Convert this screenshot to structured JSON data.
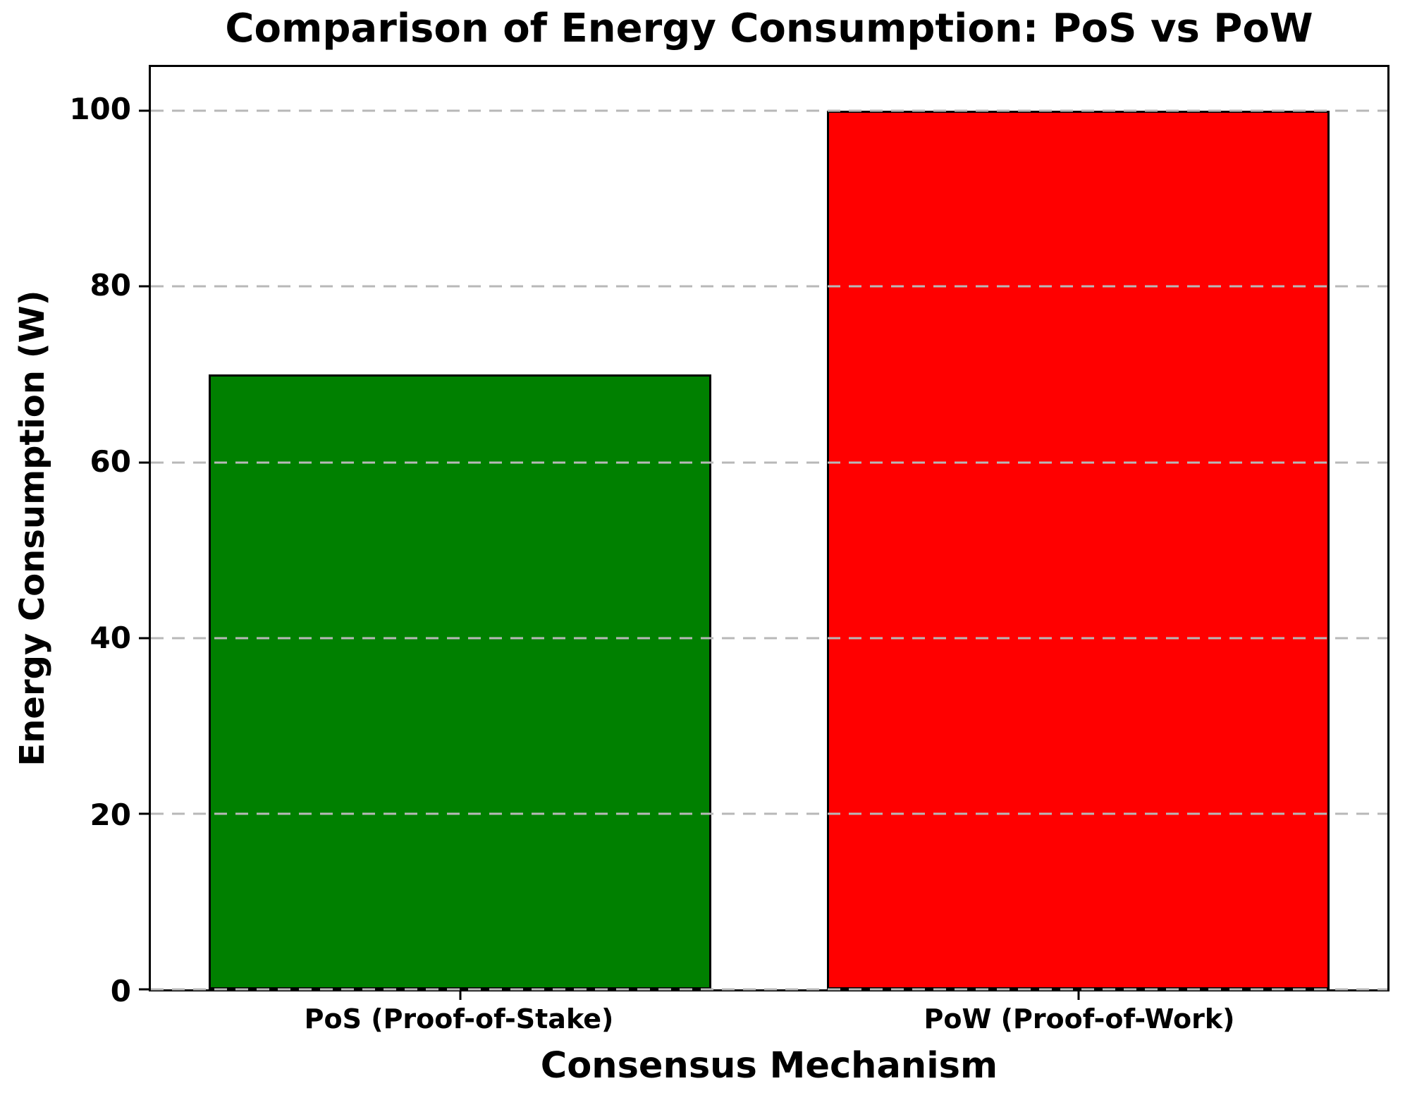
{
  "chart_data": {
    "type": "bar",
    "title": "Comparison of Energy Consumption: PoS vs PoW",
    "xlabel": "Consensus Mechanism",
    "ylabel": "Energy Consumption (W)",
    "categories": [
      "PoS (Proof-of-Stake)",
      "PoW (Proof-of-Work)"
    ],
    "values": [
      70,
      100
    ],
    "bar_colors": [
      "#008000",
      "#ff0000"
    ],
    "bar_edge_color": "#000000",
    "yticks": [
      0,
      20,
      40,
      60,
      80,
      100
    ],
    "ylim": [
      0,
      105
    ],
    "bar_width_fraction": 0.407,
    "grid": {
      "axis": "y",
      "style": "dashed",
      "color": "#b8b8b8",
      "drawn_over_bars": true
    },
    "frame_color": "#000000",
    "background_color": "#ffffff",
    "legend": false
  }
}
